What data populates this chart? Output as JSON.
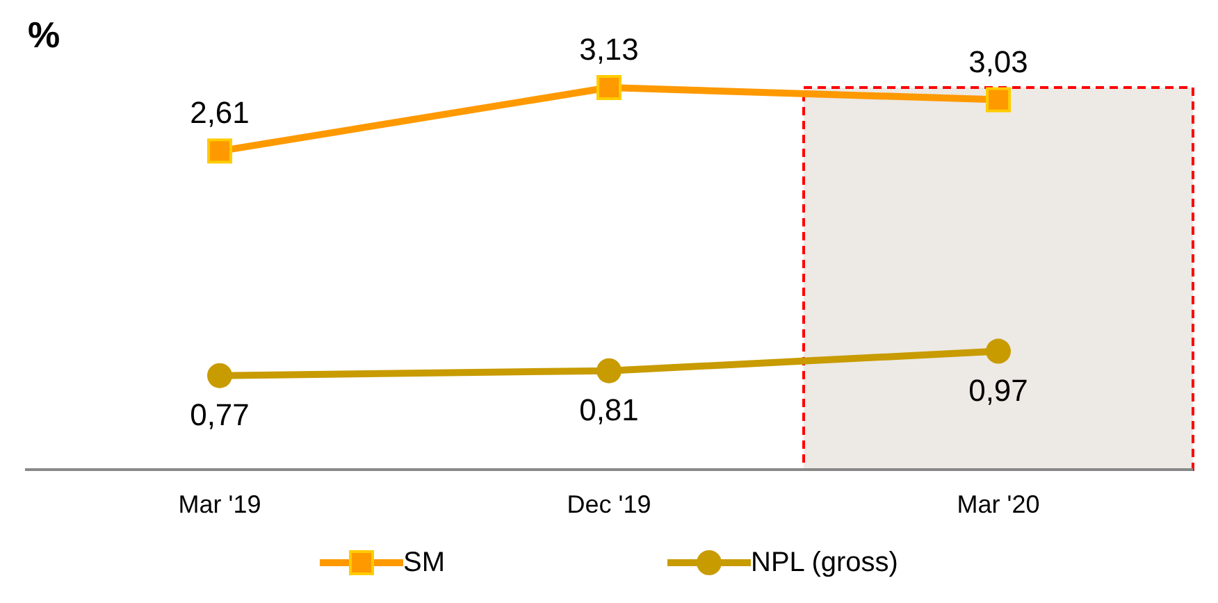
{
  "chart_data": {
    "type": "line",
    "ylabel": "%",
    "categories": [
      "Mar '19",
      "Dec '19",
      "Mar '20"
    ],
    "series": [
      {
        "name": "SM",
        "color": "#ff9900",
        "marker": "square",
        "values": [
          2.61,
          3.13,
          3.03
        ],
        "value_labels": [
          "2,61",
          "3,13",
          "3,03"
        ]
      },
      {
        "name": "NPL (gross)",
        "color": "#c89b00",
        "marker": "circle",
        "values": [
          0.77,
          0.81,
          0.97
        ],
        "value_labels": [
          "0,77",
          "0,81",
          "0,97"
        ]
      }
    ],
    "grid": false,
    "legend": "bottom",
    "bands": [
      {
        "axis": "x",
        "from": "Mar '20",
        "to": "Mar '20",
        "color": "#ede9e4"
      }
    ]
  }
}
